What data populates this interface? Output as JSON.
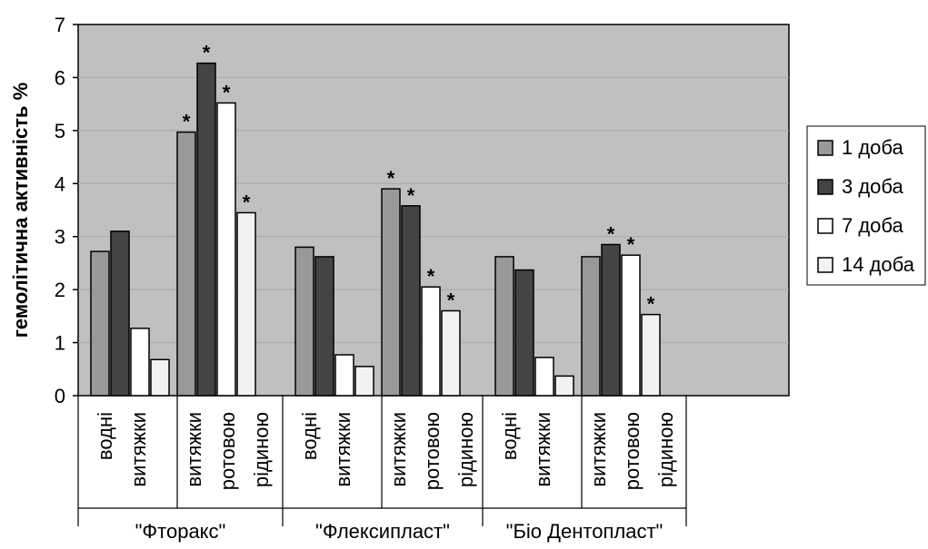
{
  "chart_data": {
    "type": "bar",
    "ylabel": "гемолітична активність %",
    "ylim": [
      0,
      7
    ],
    "yticks": [
      "0",
      "1",
      "2",
      "3",
      "4",
      "5",
      "6",
      "7"
    ],
    "grid": true,
    "legend_position": "right",
    "groups": [
      {
        "label": "\"Фторакс\"",
        "categories": [
          [
            "водні",
            "витяжки"
          ],
          [
            "витяжки",
            "ротовою",
            "рідиною"
          ]
        ]
      },
      {
        "label": "\"Флексипласт\"",
        "categories": [
          [
            "водні",
            "витяжки"
          ],
          [
            "витяжки",
            "ротовою",
            "рідиною"
          ]
        ]
      },
      {
        "label": "\"Біо Дентопласт\"",
        "categories": [
          [
            "водні",
            "витяжки"
          ],
          [
            "витяжки",
            "ротовою",
            "рідиною"
          ]
        ]
      }
    ],
    "series": [
      {
        "name": "1 доба",
        "color": "#999999",
        "values": [
          2.72,
          4.97,
          2.8,
          3.9,
          2.62,
          2.62
        ],
        "stars": [
          false,
          true,
          false,
          true,
          false,
          false
        ]
      },
      {
        "name": "3 доба",
        "color": "#444444",
        "values": [
          3.1,
          6.27,
          2.62,
          3.58,
          2.37,
          2.85
        ],
        "stars": [
          false,
          true,
          false,
          true,
          false,
          true
        ]
      },
      {
        "name": "7 доба",
        "color": "#ffffff",
        "values": [
          1.27,
          5.52,
          0.77,
          2.05,
          0.72,
          2.65
        ],
        "stars": [
          false,
          true,
          false,
          true,
          false,
          true
        ]
      },
      {
        "name": "14 доба",
        "color": "#f2f2f2",
        "values": [
          0.68,
          3.45,
          0.55,
          1.6,
          0.37,
          1.53
        ],
        "stars": [
          false,
          true,
          false,
          true,
          false,
          true
        ]
      }
    ],
    "star_symbol": "*",
    "colors": {
      "plot_background": "#c0c0c0",
      "gridline": "#a8a8a8"
    }
  }
}
